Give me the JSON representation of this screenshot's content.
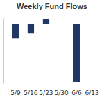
{
  "chart_data": {
    "type": "bar",
    "title": "Weekly Fund Flows",
    "categories": [
      "5/9",
      "5/16",
      "5/23",
      "5/30",
      "6/6",
      "6/13"
    ],
    "values": [
      -21,
      -14,
      6,
      0,
      -83,
      0
    ],
    "color": "#1f3864",
    "ylim": [
      -85,
      8
    ],
    "tick_labels": "x"
  }
}
